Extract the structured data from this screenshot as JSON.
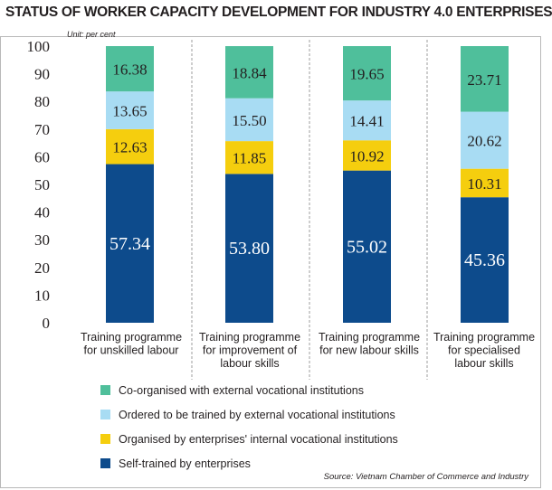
{
  "chart_data": {
    "type": "bar",
    "stacked": true,
    "title": "STATUS OF WORKER CAPACITY DEVELOPMENT FOR INDUSTRY 4.0 ENTERPRISES",
    "unit": "Unit: per cent",
    "source": "Source: Vietnam Chamber of Commerce and Industry",
    "xlabel": "",
    "ylabel": "",
    "ylim": [
      0,
      100
    ],
    "yticks": [
      0,
      10,
      20,
      30,
      40,
      50,
      60,
      70,
      80,
      90,
      100
    ],
    "grid": false,
    "legend_position": "bottom",
    "categories": [
      [
        "Training programme",
        "for unskilled labour"
      ],
      [
        "Training programme",
        "for improvement of",
        "labour skills"
      ],
      [
        "Training programme",
        "for new labour skills"
      ],
      [
        "Training programme",
        "for specialised",
        "labour skills"
      ]
    ],
    "series": [
      {
        "name": "Self-trained by enterprises",
        "color": "#0d4b8c",
        "label_color": "#ffffff",
        "values": [
          57.34,
          53.8,
          55.02,
          45.36
        ]
      },
      {
        "name": "Organised by enterprises' internal vocational institutions",
        "color": "#f5ce0e",
        "label_color": "#231f20",
        "values": [
          12.63,
          11.85,
          10.92,
          10.31
        ]
      },
      {
        "name": "Ordered to be trained by external vocational institutions",
        "color": "#a8dcf3",
        "label_color": "#231f20",
        "values": [
          13.65,
          15.5,
          14.41,
          20.62
        ]
      },
      {
        "name": "Co-organised with external vocational institutions",
        "color": "#4fbf9b",
        "label_color": "#231f20",
        "values": [
          16.38,
          18.84,
          19.65,
          23.71
        ]
      }
    ],
    "legend_order": [
      3,
      2,
      1,
      0
    ]
  }
}
